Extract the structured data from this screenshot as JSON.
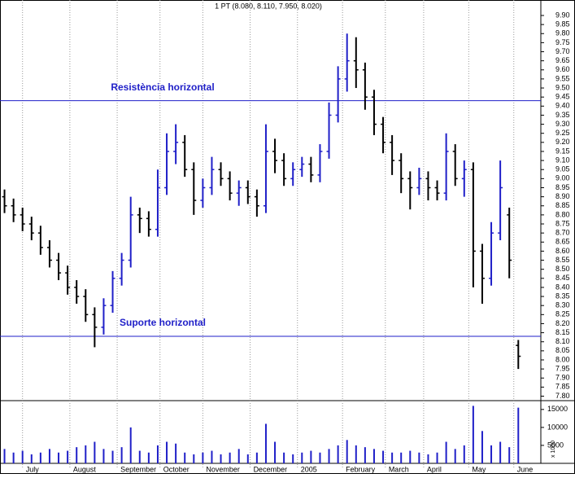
{
  "chart_data": {
    "type": "ohlc",
    "title": "1 PT (8.080, 8.110, 7.950, 8.020)",
    "x": [
      2,
      6,
      10,
      14,
      18,
      22,
      26,
      30,
      34,
      38,
      42,
      46,
      50,
      54,
      58,
      62,
      66,
      70,
      74,
      78,
      82,
      86,
      90,
      94,
      98,
      102,
      106,
      110,
      114,
      118,
      122,
      126,
      130,
      134,
      138,
      142,
      146,
      150,
      154,
      158,
      162,
      166,
      170,
      174,
      178,
      182,
      186,
      190,
      194,
      198,
      202,
      206,
      210,
      214,
      218,
      222,
      226,
      230
    ],
    "open": [
      8.9,
      8.85,
      8.8,
      8.75,
      8.7,
      8.62,
      8.55,
      8.48,
      8.4,
      8.35,
      8.25,
      8.18,
      8.3,
      8.45,
      8.55,
      8.8,
      8.78,
      8.72,
      8.95,
      9.15,
      9.2,
      9.05,
      8.88,
      8.95,
      9.05,
      9.0,
      8.92,
      8.95,
      8.9,
      8.85,
      9.15,
      9.1,
      9.0,
      9.05,
      9.08,
      9.02,
      9.15,
      9.35,
      9.55,
      9.65,
      9.6,
      9.45,
      9.3,
      9.2,
      9.1,
      9.0,
      8.95,
      9.0,
      8.95,
      8.92,
      9.15,
      9.0,
      9.05,
      8.6,
      8.45,
      8.7,
      8.8,
      8.08
    ],
    "high": [
      8.94,
      8.89,
      8.84,
      8.79,
      8.74,
      8.66,
      8.59,
      8.52,
      8.44,
      8.39,
      8.29,
      8.34,
      8.49,
      8.59,
      8.9,
      8.84,
      8.82,
      9.05,
      9.25,
      9.3,
      9.24,
      9.09,
      9.0,
      9.12,
      9.09,
      9.04,
      8.99,
      8.99,
      8.94,
      9.3,
      9.22,
      9.14,
      9.09,
      9.12,
      9.12,
      9.19,
      9.42,
      9.62,
      9.8,
      9.78,
      9.64,
      9.49,
      9.34,
      9.24,
      9.14,
      9.04,
      9.06,
      9.04,
      8.99,
      9.25,
      9.19,
      9.1,
      9.09,
      8.64,
      8.76,
      9.1,
      8.84,
      8.11
    ],
    "low": [
      8.81,
      8.76,
      8.71,
      8.66,
      8.58,
      8.51,
      8.44,
      8.36,
      8.31,
      8.21,
      8.07,
      8.14,
      8.26,
      8.41,
      8.51,
      8.7,
      8.68,
      8.68,
      8.91,
      9.08,
      9.01,
      8.8,
      8.84,
      8.91,
      8.96,
      8.88,
      8.85,
      8.86,
      8.79,
      8.81,
      9.03,
      8.96,
      8.96,
      9.01,
      8.98,
      8.98,
      9.11,
      9.31,
      9.48,
      9.5,
      9.38,
      9.24,
      9.14,
      9.02,
      8.92,
      8.83,
      8.91,
      8.88,
      8.88,
      8.88,
      8.96,
      8.9,
      8.4,
      8.31,
      8.41,
      8.66,
      8.45,
      7.95
    ],
    "close": [
      8.85,
      8.8,
      8.75,
      8.7,
      8.62,
      8.55,
      8.48,
      8.4,
      8.35,
      8.25,
      8.18,
      8.3,
      8.45,
      8.55,
      8.8,
      8.78,
      8.72,
      8.95,
      9.15,
      9.2,
      9.05,
      8.88,
      8.95,
      9.05,
      9.0,
      8.92,
      8.95,
      8.9,
      8.85,
      9.15,
      9.1,
      9.0,
      9.05,
      9.08,
      9.02,
      9.15,
      9.35,
      9.55,
      9.65,
      9.6,
      9.45,
      9.3,
      9.2,
      9.1,
      9.0,
      8.95,
      9.0,
      8.95,
      8.92,
      9.15,
      9.0,
      9.05,
      8.6,
      8.45,
      8.7,
      8.95,
      8.55,
      8.02
    ],
    "volume": [
      4000,
      3000,
      3500,
      2500,
      3000,
      4000,
      3000,
      3500,
      4500,
      5000,
      6000,
      4000,
      3500,
      4500,
      10000,
      3500,
      3000,
      5000,
      6000,
      5500,
      3000,
      2500,
      3000,
      3500,
      2500,
      3000,
      4000,
      2500,
      3000,
      11000,
      6000,
      3000,
      2500,
      3000,
      3500,
      3000,
      4000,
      5000,
      6500,
      5000,
      4500,
      4000,
      3500,
      3000,
      3000,
      3500,
      3000,
      2500,
      3000,
      6000,
      4000,
      5000,
      16000,
      9000,
      5000,
      6000,
      4500,
      15500
    ],
    "up_color": "#1f1fc8",
    "down_color": "#000000",
    "volume_color": "#1f1fc8",
    "xlim": [
      0,
      240
    ],
    "xticks": [
      {
        "value": 10,
        "label": "July"
      },
      {
        "value": 31,
        "label": "August"
      },
      {
        "value": 52,
        "label": "September"
      },
      {
        "value": 71,
        "label": "October"
      },
      {
        "value": 90,
        "label": "November"
      },
      {
        "value": 111,
        "label": "December"
      },
      {
        "value": 132,
        "label": "2005"
      },
      {
        "value": 152,
        "label": "February"
      },
      {
        "value": 171,
        "label": "March"
      },
      {
        "value": 188,
        "label": "April"
      },
      {
        "value": 208,
        "label": "May"
      },
      {
        "value": 228,
        "label": "June"
      }
    ],
    "ylim": [
      7.8,
      9.9
    ],
    "yticks": [
      {
        "value": 9.9,
        "label": "9.90"
      },
      {
        "value": 9.85,
        "label": "9.85"
      },
      {
        "value": 9.8,
        "label": "9.80"
      },
      {
        "value": 9.75,
        "label": "9.75"
      },
      {
        "value": 9.7,
        "label": "9.70"
      },
      {
        "value": 9.65,
        "label": "9.65"
      },
      {
        "value": 9.6,
        "label": "9.60"
      },
      {
        "value": 9.55,
        "label": "9.55"
      },
      {
        "value": 9.5,
        "label": "9.50"
      },
      {
        "value": 9.45,
        "label": "9.45"
      },
      {
        "value": 9.4,
        "label": "9.40"
      },
      {
        "value": 9.35,
        "label": "9.35"
      },
      {
        "value": 9.3,
        "label": "9.30"
      },
      {
        "value": 9.25,
        "label": "9.25"
      },
      {
        "value": 9.2,
        "label": "9.20"
      },
      {
        "value": 9.15,
        "label": "9.15"
      },
      {
        "value": 9.1,
        "label": "9.10"
      },
      {
        "value": 9.05,
        "label": "9.05"
      },
      {
        "value": 9.0,
        "label": "9.00"
      },
      {
        "value": 8.95,
        "label": "8.95"
      },
      {
        "value": 8.9,
        "label": "8.90"
      },
      {
        "value": 8.85,
        "label": "8.85"
      },
      {
        "value": 8.8,
        "label": "8.80"
      },
      {
        "value": 8.75,
        "label": "8.75"
      },
      {
        "value": 8.7,
        "label": "8.70"
      },
      {
        "value": 8.65,
        "label": "8.65"
      },
      {
        "value": 8.6,
        "label": "8.60"
      },
      {
        "value": 8.55,
        "label": "8.55"
      },
      {
        "value": 8.5,
        "label": "8.50"
      },
      {
        "value": 8.45,
        "label": "8.45"
      },
      {
        "value": 8.4,
        "label": "8.40"
      },
      {
        "value": 8.35,
        "label": "8.35"
      },
      {
        "value": 8.3,
        "label": "8.30"
      },
      {
        "value": 8.25,
        "label": "8.25"
      },
      {
        "value": 8.2,
        "label": "8.20"
      },
      {
        "value": 8.15,
        "label": "8.15"
      },
      {
        "value": 8.1,
        "label": "8.10"
      },
      {
        "value": 8.05,
        "label": "8.05"
      },
      {
        "value": 8.0,
        "label": "8.00"
      },
      {
        "value": 7.95,
        "label": "7.95"
      },
      {
        "value": 7.9,
        "label": "7.90"
      },
      {
        "value": 7.85,
        "label": "7.85"
      },
      {
        "value": 7.8,
        "label": "7.80"
      }
    ],
    "vlim": [
      0,
      17000
    ],
    "vticks": [
      5000,
      10000,
      15000
    ],
    "volume_unit_label": "x 1000",
    "reference_lines": [
      {
        "value": 9.43,
        "label": "Resistència horizontal",
        "color": "#1f1fc8"
      },
      {
        "value": 8.13,
        "label": "Suporte horizontal",
        "color": "#1f1fc8"
      }
    ]
  }
}
